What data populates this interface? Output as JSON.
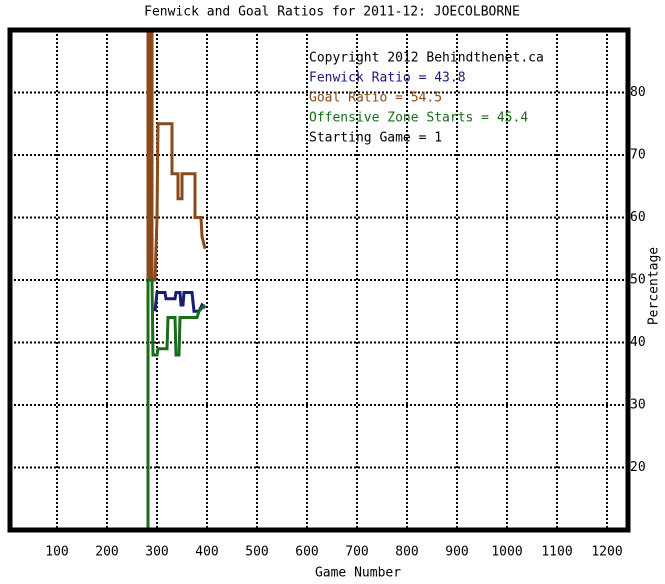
{
  "chart_data": {
    "type": "line",
    "title": "Fenwick and Goal Ratios for 2011-12: JOECOLBORNE",
    "x_label": "Game Number",
    "y_label": "Percentage",
    "annotations": [
      {
        "text": "Copyright 2012 Behindthenet.ca",
        "color": "#000000"
      },
      {
        "text": "Fenwick Ratio = 43.8",
        "color": "#1a1a7a"
      },
      {
        "text": "Goal Ratio = 54.5",
        "color": "#8b4a1c"
      },
      {
        "text": "Offensive Zone Starts = 45.4",
        "color": "#1a6b1a"
      },
      {
        "text": "Starting Game = 1",
        "color": "#000000"
      }
    ],
    "xlim": [
      6,
      1242
    ],
    "ylim": [
      10,
      90
    ],
    "xticks": [
      100,
      200,
      300,
      400,
      500,
      600,
      700,
      800,
      900,
      1000,
      1100,
      1200
    ],
    "yticks": [
      20,
      30,
      40,
      50,
      60,
      70,
      80
    ],
    "grid": true,
    "series": [
      {
        "color": "#8b4a1c",
        "x": [
          282,
          282,
          286,
          286,
          290,
          290,
          296,
          300,
          302,
          330,
          330,
          342,
          342,
          350,
          350,
          376,
          376,
          388,
          390,
          396
        ],
        "values": [
          90,
          50,
          90,
          50,
          90,
          50,
          50,
          60,
          75,
          75,
          67,
          67,
          63,
          63,
          67,
          67,
          60,
          60,
          57,
          55
        ]
      },
      {
        "color": "#1a1a7a",
        "x": [
          296,
          300,
          316,
          318,
          336,
          338,
          346,
          348,
          352,
          354,
          370,
          374,
          384,
          390,
          396
        ],
        "values": [
          45,
          48,
          48,
          47,
          47,
          48,
          48,
          46,
          46,
          48,
          48,
          45,
          45,
          46,
          45.5
        ]
      },
      {
        "color": "#1a6b1a",
        "x": [
          282,
          282,
          290,
          292,
          300,
          302,
          320,
          322,
          336,
          338,
          344,
          346,
          380,
          384,
          396
        ],
        "values": [
          10,
          50,
          50,
          38,
          38,
          39,
          39,
          44,
          44,
          38,
          38,
          44,
          44,
          45,
          46
        ]
      }
    ]
  }
}
